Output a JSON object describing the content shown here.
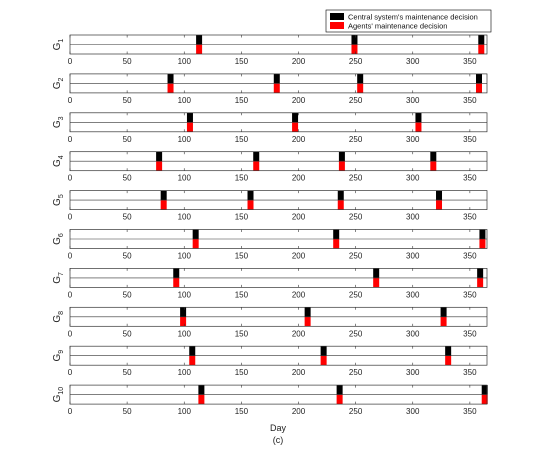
{
  "chart_data": {
    "type": "bar",
    "xlim": [
      0,
      365
    ],
    "xticks": [
      0,
      50,
      100,
      150,
      200,
      250,
      300,
      350
    ],
    "xlabel": "Day",
    "caption": "(c)",
    "legend": {
      "placement": "top-right",
      "entries": [
        {
          "name": "Central system's maintenance decision",
          "color": "#000000"
        },
        {
          "name": "Agents' maintenance decision",
          "color": "#ff0000"
        }
      ]
    },
    "grid": false,
    "panels": [
      {
        "label": "G",
        "sub": "1",
        "central": [
          113,
          249,
          360
        ],
        "agents": [
          113,
          249,
          360
        ]
      },
      {
        "label": "G",
        "sub": "2",
        "central": [
          88,
          181,
          254,
          358
        ],
        "agents": [
          88,
          181,
          254,
          358
        ]
      },
      {
        "label": "G",
        "sub": "3",
        "central": [
          105,
          197,
          305
        ],
        "agents": [
          105,
          197,
          305
        ]
      },
      {
        "label": "G",
        "sub": "4",
        "central": [
          78,
          163,
          238,
          318
        ],
        "agents": [
          78,
          163,
          238,
          318
        ]
      },
      {
        "label": "G",
        "sub": "5",
        "central": [
          82,
          158,
          237,
          323
        ],
        "agents": [
          82,
          158,
          237,
          323
        ]
      },
      {
        "label": "G",
        "sub": "6",
        "central": [
          110,
          233,
          361
        ],
        "agents": [
          110,
          233,
          361
        ]
      },
      {
        "label": "G",
        "sub": "7",
        "central": [
          93,
          268,
          359
        ],
        "agents": [
          93,
          268,
          359
        ]
      },
      {
        "label": "G",
        "sub": "8",
        "central": [
          99,
          208,
          327
        ],
        "agents": [
          99,
          208,
          327
        ]
      },
      {
        "label": "G",
        "sub": "9",
        "central": [
          107,
          222,
          331
        ],
        "agents": [
          107,
          222,
          331
        ]
      },
      {
        "label": "G",
        "sub": "10",
        "central": [
          115,
          236,
          363
        ],
        "agents": [
          115,
          236,
          363
        ]
      }
    ]
  }
}
